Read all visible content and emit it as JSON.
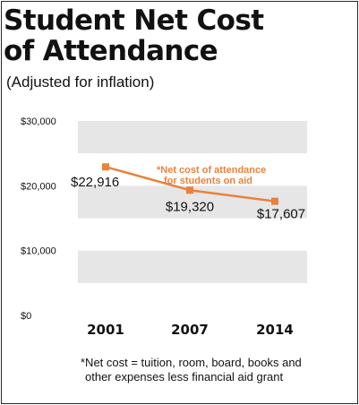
{
  "title_line1": "Student Net Cost",
  "title_line2": "of Attendance",
  "subtitle": "(Adjusted for inflation)",
  "footnote_line1": "*Net cost = tuition, room, board, books and",
  "footnote_line2": "other expenses less financial aid grant",
  "colors": {
    "series": "#e8823d",
    "band": "#e6e6e6",
    "text": "#111111"
  },
  "chart_data": {
    "type": "line",
    "categories": [
      "2001",
      "2007",
      "2014"
    ],
    "series": [
      {
        "name": "*Net cost of attendance for students on aid",
        "legend_lines": [
          "*Net cost of attendance",
          "for students on aid"
        ],
        "values": [
          22916,
          19320,
          17607
        ]
      }
    ],
    "data_labels": [
      "$22,916",
      "$19,320",
      "$17,607"
    ],
    "yticks": [
      0,
      10000,
      20000,
      30000
    ],
    "ytick_labels": [
      "$0",
      "$10,000",
      "$20,000",
      "$30,000"
    ],
    "ylim": [
      0,
      30000
    ],
    "grid": "alternating horizontal bands",
    "legend": "annotation above line, center-right"
  }
}
